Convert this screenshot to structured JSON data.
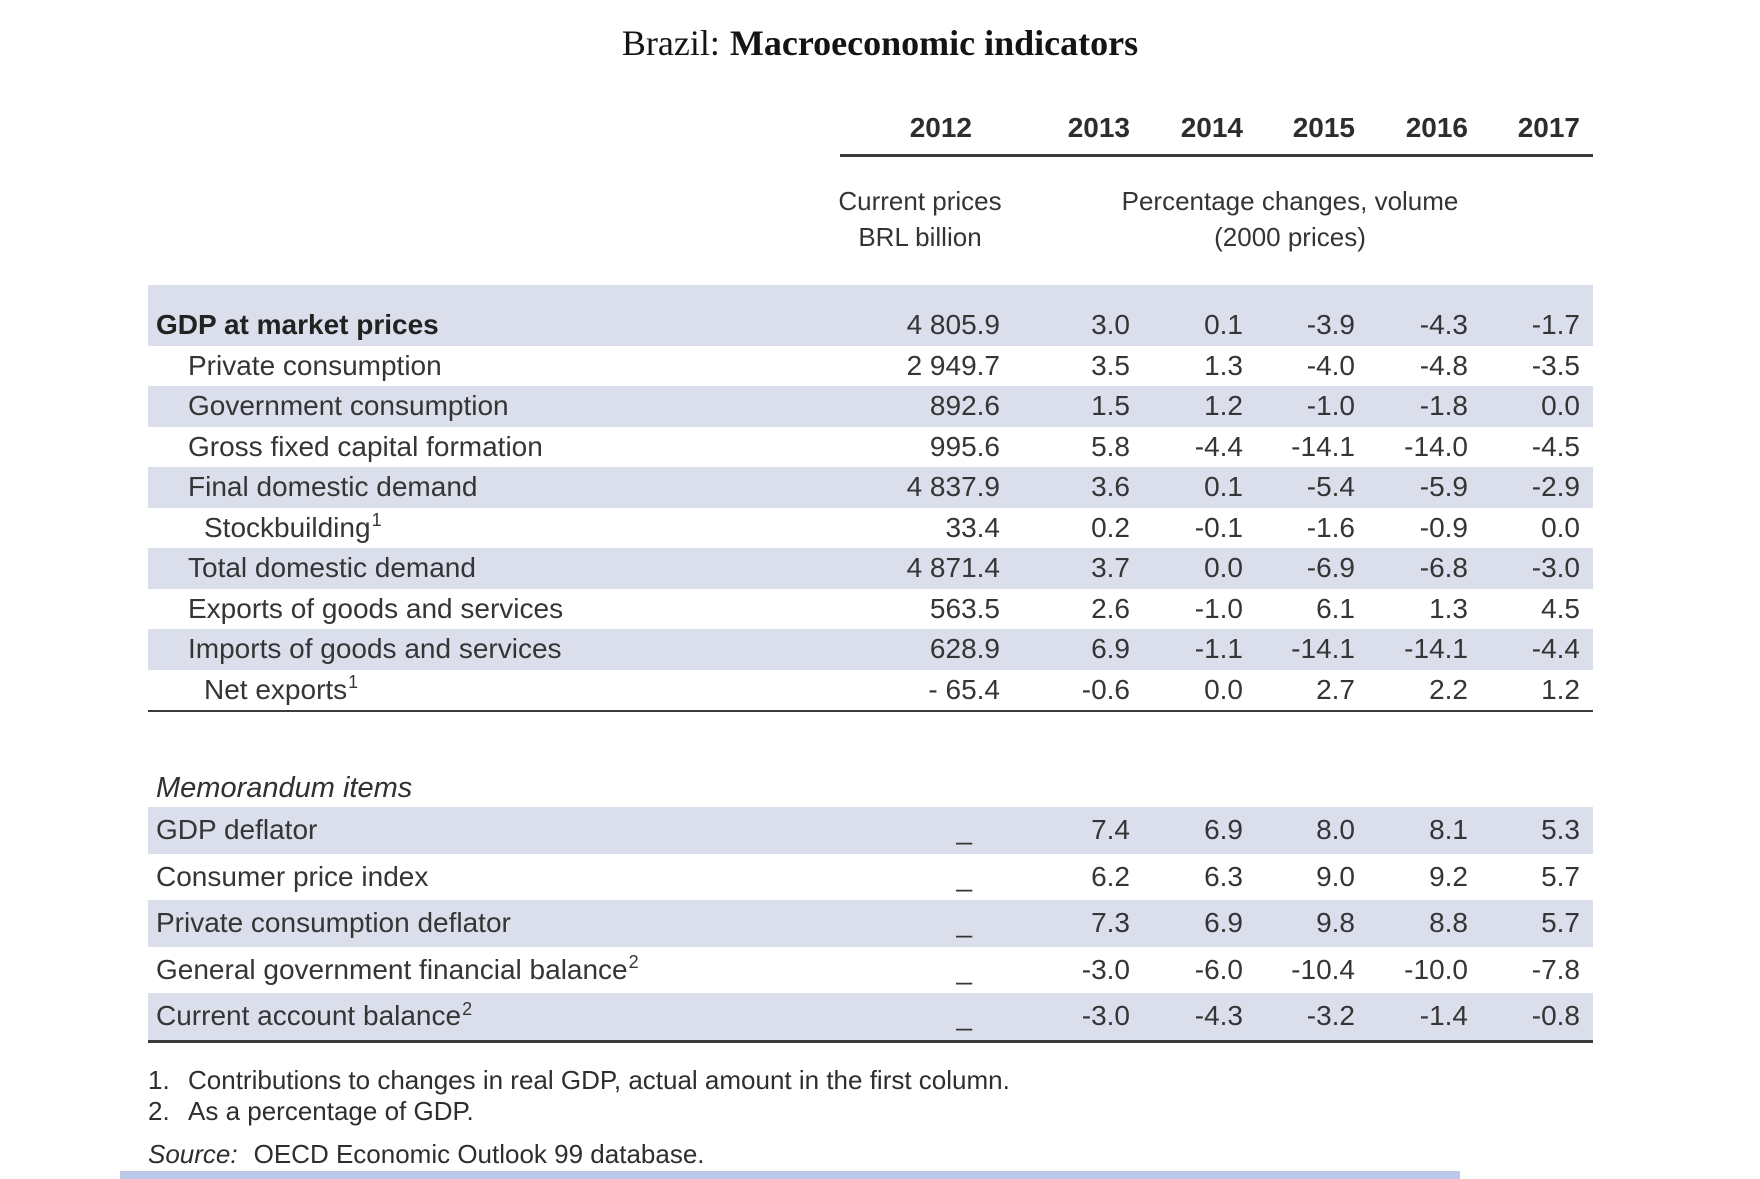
{
  "title": {
    "prefix": "Brazil:",
    "main": "Macroeconomic indicators"
  },
  "table": {
    "years": [
      "2012",
      "2013",
      "2014",
      "2015",
      "2016",
      "2017"
    ],
    "first_col_subheader": [
      "Current prices",
      "BRL billion"
    ],
    "rest_cols_subheader": [
      "Percentage changes, volume",
      "(2000 prices)"
    ],
    "rows": [
      {
        "label": "GDP at market prices",
        "sup": "",
        "indent": 0,
        "bold": true,
        "values": [
          "4 805.9",
          "3.0",
          "0.1",
          "-3.9",
          "-4.3",
          "-1.7"
        ]
      },
      {
        "label": "Private consumption",
        "sup": "",
        "indent": 1,
        "bold": false,
        "values": [
          "2 949.7",
          "3.5",
          "1.3",
          "-4.0",
          "-4.8",
          "-3.5"
        ]
      },
      {
        "label": "Government consumption",
        "sup": "",
        "indent": 1,
        "bold": false,
        "values": [
          "892.6",
          "1.5",
          "1.2",
          "-1.0",
          "-1.8",
          "0.0"
        ]
      },
      {
        "label": "Gross fixed capital formation",
        "sup": "",
        "indent": 1,
        "bold": false,
        "values": [
          "995.6",
          "5.8",
          "-4.4",
          "-14.1",
          "-14.0",
          "-4.5"
        ]
      },
      {
        "label": "Final domestic demand",
        "sup": "",
        "indent": 1,
        "bold": false,
        "values": [
          "4 837.9",
          "3.6",
          "0.1",
          "-5.4",
          "-5.9",
          "-2.9"
        ]
      },
      {
        "label": "Stockbuilding",
        "sup": "1",
        "indent": 2,
        "bold": false,
        "values": [
          "33.4",
          "0.2",
          "-0.1",
          "-1.6",
          "-0.9",
          "0.0"
        ]
      },
      {
        "label": "Total domestic demand",
        "sup": "",
        "indent": 1,
        "bold": false,
        "values": [
          "4 871.4",
          "3.7",
          "0.0",
          "-6.9",
          "-6.8",
          "-3.0"
        ]
      },
      {
        "label": "Exports of goods and services",
        "sup": "",
        "indent": 1,
        "bold": false,
        "values": [
          "563.5",
          "2.6",
          "-1.0",
          "6.1",
          "1.3",
          "4.5"
        ]
      },
      {
        "label": "Imports of goods and services",
        "sup": "",
        "indent": 1,
        "bold": false,
        "values": [
          "628.9",
          "6.9",
          "-1.1",
          "-14.1",
          "-14.1",
          "-4.4"
        ]
      },
      {
        "label": "Net exports",
        "sup": "1",
        "indent": 2,
        "bold": false,
        "values": [
          "- 65.4",
          "-0.6",
          "0.0",
          "2.7",
          "2.2",
          "1.2"
        ]
      }
    ],
    "memo_header": "Memorandum items",
    "memo_rows": [
      {
        "label": "GDP deflator",
        "sup": "",
        "indent": 0,
        "values": [
          "_",
          "7.4",
          "6.9",
          "8.0",
          "8.1",
          "5.3"
        ]
      },
      {
        "label": "Consumer price index",
        "sup": "",
        "indent": 0,
        "values": [
          "_",
          "6.2",
          "6.3",
          "9.0",
          "9.2",
          "5.7"
        ]
      },
      {
        "label": "Private consumption deflator",
        "sup": "",
        "indent": 0,
        "values": [
          "_",
          "7.3",
          "6.9",
          "9.8",
          "8.8",
          "5.7"
        ]
      },
      {
        "label": "General government financial balance",
        "sup": "2",
        "indent": 0,
        "values": [
          "_",
          "-3.0",
          "-6.0",
          "-10.4",
          "-10.0",
          "-7.8"
        ]
      },
      {
        "label": "Current account balance",
        "sup": "2",
        "indent": 0,
        "values": [
          "_",
          "-3.0",
          "-4.3",
          "-3.2",
          "-1.4",
          "-0.8"
        ]
      }
    ]
  },
  "footnotes": [
    {
      "num": "1.",
      "text": "Contributions to changes in real GDP, actual amount in the first column."
    },
    {
      "num": "2.",
      "text": "As a percentage of GDP."
    }
  ],
  "source": {
    "label": "Source:",
    "text": "OECD Economic Outlook 99 database."
  },
  "colors": {
    "row_shade": "#dbdeeb",
    "rule": "#3b3b3b",
    "text": "#333333",
    "bottom_strip": "#bdc7e7"
  }
}
